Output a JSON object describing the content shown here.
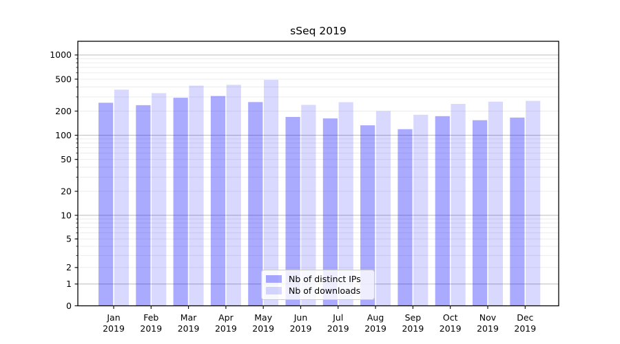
{
  "chart_data": {
    "type": "bar",
    "title": "sSeq 2019",
    "categories": [
      "Jan",
      "Feb",
      "Mar",
      "Apr",
      "May",
      "Jun",
      "Jul",
      "Aug",
      "Sep",
      "Oct",
      "Nov",
      "Dec"
    ],
    "year_label": "2019",
    "series": [
      {
        "name": "Nb of distinct IPs",
        "color": "#0000FF55",
        "values": [
          254,
          237,
          293,
          308,
          259,
          169,
          162,
          133,
          119,
          173,
          154,
          166
        ]
      },
      {
        "name": "Nb of downloads",
        "color": "#0000FF26",
        "values": [
          370,
          335,
          415,
          425,
          490,
          239,
          258,
          200,
          180,
          246,
          262,
          268
        ]
      }
    ],
    "xlabel": "",
    "ylabel": "",
    "yscale": "asinh",
    "ylim": [
      0,
      1480
    ],
    "yticks": [
      0,
      1,
      2,
      5,
      10,
      20,
      50,
      100,
      200,
      500,
      1000
    ],
    "major_grid_values": [
      1,
      10,
      100,
      1000
    ],
    "grid": "on",
    "legend_position": "lower center"
  },
  "colors": {
    "background": "#ffffff",
    "axis": "#000000",
    "tick_label": "#000000",
    "grid_major": "#c2c2c2",
    "grid_minor": "#eaeaea",
    "legend_border": "#cccccc",
    "legend_background": "#ffffffcc"
  }
}
